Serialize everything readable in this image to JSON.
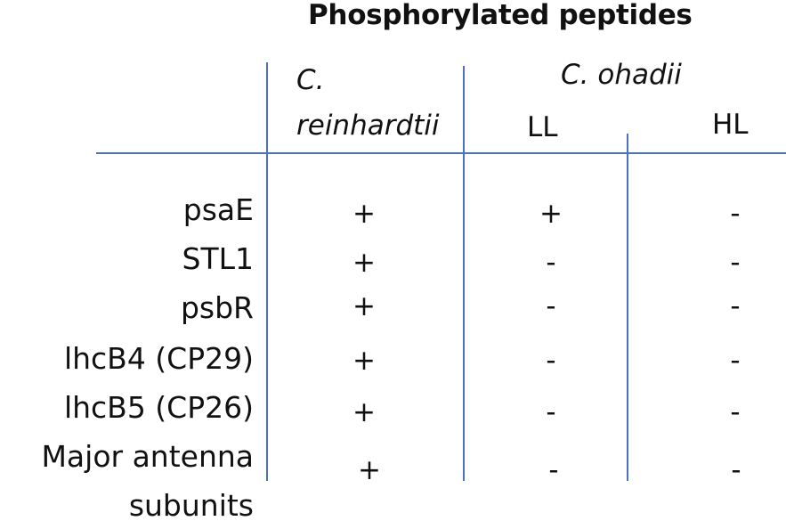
{
  "title": "Phosphorylated peptides",
  "columns": {
    "cr": {
      "line1": "C.",
      "line2": "reinhardtii"
    },
    "co": {
      "name": "C. ohadii",
      "ll": "LL",
      "hl": "HL"
    }
  },
  "rows": [
    {
      "label": "psaE",
      "cr": "+",
      "ll": "+",
      "hl": "-"
    },
    {
      "label": "STL1",
      "cr": "+",
      "ll": "-",
      "hl": "-"
    },
    {
      "label": "psbR",
      "cr": "+",
      "ll": "-",
      "hl": "-"
    },
    {
      "label": "lhcB4 (CP29)",
      "cr": "+",
      "ll": "-",
      "hl": "-"
    },
    {
      "label": "lhcB5 (CP26)",
      "cr": "+",
      "ll": "-",
      "hl": "-"
    },
    {
      "label": "Major antenna",
      "label2": "subunits",
      "cr": "+",
      "ll": "-",
      "hl": "-"
    }
  ],
  "colors": {
    "rule": "#4a72c4",
    "text": "#111111"
  }
}
